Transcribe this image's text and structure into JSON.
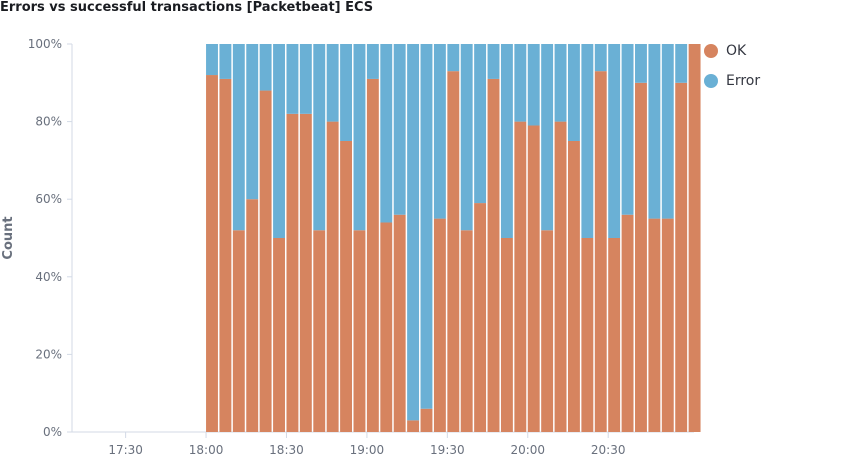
{
  "title": "Errors vs successful transactions [Packetbeat] ECS",
  "chart_data": {
    "type": "bar",
    "stacked": "percentage",
    "title": "Errors vs successful transactions [Packetbeat] ECS",
    "ylabel": "Count",
    "xlabel": "",
    "ylim": [
      0,
      100
    ],
    "yticks": [
      "0%",
      "20%",
      "40%",
      "60%",
      "80%",
      "100%"
    ],
    "xticks": [
      "17:30",
      "18:00",
      "18:30",
      "19:00",
      "19:30",
      "20:00",
      "20:30"
    ],
    "x_range": [
      "17:10",
      "21:02"
    ],
    "bucket_minutes": 5,
    "grid": false,
    "legend_position": "right",
    "categories": [
      "18:00",
      "18:05",
      "18:10",
      "18:15",
      "18:20",
      "18:25",
      "18:30",
      "18:35",
      "18:40",
      "18:45",
      "18:50",
      "18:55",
      "19:00",
      "19:05",
      "19:10",
      "19:15",
      "19:20",
      "19:25",
      "19:30",
      "19:35",
      "19:40",
      "19:45",
      "19:50",
      "19:55",
      "20:00",
      "20:05",
      "20:10",
      "20:15",
      "20:20",
      "20:25",
      "20:30",
      "20:35",
      "20:40",
      "20:45",
      "20:50",
      "20:55",
      "21:00"
    ],
    "series": [
      {
        "name": "OK",
        "color": "#d6845f",
        "values": [
          92,
          91,
          52,
          60,
          88,
          50,
          82,
          82,
          52,
          80,
          75,
          52,
          91,
          54,
          56,
          3,
          6,
          55,
          93,
          52,
          59,
          91,
          50,
          80,
          79,
          52,
          80,
          75,
          50,
          93,
          50,
          56,
          90,
          55,
          55,
          90,
          100
        ]
      },
      {
        "name": "Error",
        "color": "#6ab0d5",
        "values": [
          8,
          9,
          48,
          40,
          12,
          50,
          18,
          18,
          48,
          20,
          25,
          48,
          9,
          46,
          44,
          97,
          94,
          45,
          7,
          48,
          41,
          9,
          50,
          20,
          21,
          48,
          20,
          25,
          50,
          7,
          50,
          44,
          10,
          45,
          45,
          10,
          0
        ]
      }
    ]
  }
}
